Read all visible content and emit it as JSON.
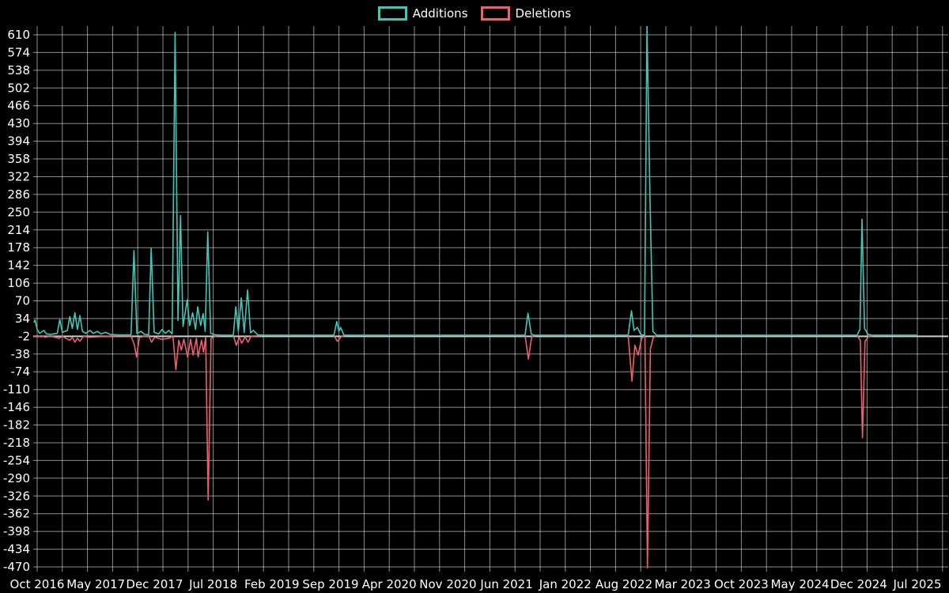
{
  "chart_data": {
    "type": "line",
    "title": "",
    "background": "#000000",
    "text_color": "#ffffff",
    "grid": true,
    "grid_color": "rgba(255,255,255,0.55)",
    "axis_line_value": -2,
    "axis_line_color": "#c9ced3",
    "legend_position": "top-center",
    "x_domain": [
      0,
      105
    ],
    "x_unit": "months since Oct 2016",
    "ylim": [
      -470,
      610
    ],
    "y_ticks": [
      610,
      574,
      538,
      502,
      466,
      430,
      394,
      358,
      322,
      286,
      250,
      214,
      178,
      142,
      106,
      70,
      34,
      -2,
      -38,
      -74,
      -110,
      -146,
      -182,
      -218,
      -254,
      -290,
      -326,
      -362,
      -398,
      -434,
      -470
    ],
    "x_ticks": [
      {
        "label": "Oct 2016",
        "m": 0
      },
      {
        "label": "May 2017",
        "m": 7
      },
      {
        "label": "Dec 2017",
        "m": 14
      },
      {
        "label": "Jul 2018",
        "m": 21
      },
      {
        "label": "Feb 2019",
        "m": 28
      },
      {
        "label": "Sep 2019",
        "m": 35
      },
      {
        "label": "Apr 2020",
        "m": 42
      },
      {
        "label": "Nov 2020",
        "m": 49
      },
      {
        "label": "Jun 2021",
        "m": 56
      },
      {
        "label": "Jan 2022",
        "m": 63
      },
      {
        "label": "Aug 2022",
        "m": 70
      },
      {
        "label": "Mar 2023",
        "m": 77
      },
      {
        "label": "Oct 2023",
        "m": 84
      },
      {
        "label": "May 2024",
        "m": 91
      },
      {
        "label": "Dec 2024",
        "m": 98
      },
      {
        "label": "Jul 2025",
        "m": 105
      }
    ],
    "series": [
      {
        "name": "Additions",
        "color": "#3ec8ba",
        "points": [
          [
            -0.4,
            26
          ],
          [
            -0.25,
            31
          ],
          [
            0,
            12
          ],
          [
            0.3,
            4
          ],
          [
            0.8,
            10
          ],
          [
            1.1,
            3
          ],
          [
            1.6,
            2
          ],
          [
            2.4,
            4
          ],
          [
            2.7,
            32
          ],
          [
            3.0,
            6
          ],
          [
            3.6,
            10
          ],
          [
            3.9,
            38
          ],
          [
            4.2,
            14
          ],
          [
            4.5,
            46
          ],
          [
            4.8,
            12
          ],
          [
            5.1,
            40
          ],
          [
            5.4,
            8
          ],
          [
            5.8,
            4
          ],
          [
            6.3,
            10
          ],
          [
            6.7,
            4
          ],
          [
            7.2,
            8
          ],
          [
            7.6,
            3
          ],
          [
            8.2,
            6
          ],
          [
            8.7,
            2
          ],
          [
            9.6,
            1
          ],
          [
            11.2,
            1
          ],
          [
            11.55,
            172
          ],
          [
            11.9,
            4
          ],
          [
            12.4,
            8
          ],
          [
            12.8,
            2
          ],
          [
            13.3,
            1
          ],
          [
            13.6,
            177
          ],
          [
            13.95,
            6
          ],
          [
            14.5,
            3
          ],
          [
            14.9,
            12
          ],
          [
            15.3,
            4
          ],
          [
            15.7,
            10
          ],
          [
            16.1,
            3
          ],
          [
            16.45,
            615
          ],
          [
            16.8,
            30
          ],
          [
            17.1,
            243
          ],
          [
            17.4,
            18
          ],
          [
            17.9,
            72
          ],
          [
            18.2,
            20
          ],
          [
            18.55,
            46
          ],
          [
            18.9,
            12
          ],
          [
            19.15,
            58
          ],
          [
            19.5,
            20
          ],
          [
            19.8,
            44
          ],
          [
            20.05,
            8
          ],
          [
            20.35,
            210
          ],
          [
            20.7,
            4
          ],
          [
            21.3,
            1
          ],
          [
            22.2,
            0
          ],
          [
            23.4,
            0
          ],
          [
            23.7,
            58
          ],
          [
            24.0,
            8
          ],
          [
            24.35,
            76
          ],
          [
            24.7,
            6
          ],
          [
            25.1,
            92
          ],
          [
            25.45,
            5
          ],
          [
            25.8,
            10
          ],
          [
            26.3,
            1
          ],
          [
            27.2,
            0
          ],
          [
            35.4,
            0
          ],
          [
            35.75,
            28
          ],
          [
            36.0,
            8
          ],
          [
            36.2,
            16
          ],
          [
            36.6,
            0
          ],
          [
            58.2,
            0
          ],
          [
            58.55,
            45
          ],
          [
            58.95,
            2
          ],
          [
            59.4,
            0
          ],
          [
            70.5,
            0
          ],
          [
            70.9,
            50
          ],
          [
            71.2,
            10
          ],
          [
            71.6,
            16
          ],
          [
            72.0,
            2
          ],
          [
            72.45,
            0
          ],
          [
            72.75,
            628
          ],
          [
            73.1,
            278
          ],
          [
            73.45,
            8
          ],
          [
            73.9,
            0
          ],
          [
            97.8,
            0
          ],
          [
            98.15,
            12
          ],
          [
            98.4,
            236
          ],
          [
            98.7,
            14
          ],
          [
            99.1,
            2
          ],
          [
            99.7,
            0
          ],
          [
            105,
            0
          ]
        ]
      },
      {
        "name": "Deletions",
        "color": "#f05f6d",
        "points": [
          [
            -0.4,
            -2
          ],
          [
            0,
            -3
          ],
          [
            0.5,
            -1
          ],
          [
            1,
            -4
          ],
          [
            1.5,
            -1
          ],
          [
            2.6,
            -6
          ],
          [
            3.0,
            -2
          ],
          [
            3.9,
            -10
          ],
          [
            4.2,
            -4
          ],
          [
            4.5,
            -14
          ],
          [
            4.8,
            -6
          ],
          [
            5.1,
            -12
          ],
          [
            5.5,
            -2
          ],
          [
            6.3,
            -4
          ],
          [
            7.2,
            -3
          ],
          [
            8.2,
            -2
          ],
          [
            9.6,
            -1
          ],
          [
            11.2,
            -1
          ],
          [
            11.6,
            -20
          ],
          [
            11.85,
            -44
          ],
          [
            12.2,
            -4
          ],
          [
            12.8,
            -2
          ],
          [
            13.3,
            -1
          ],
          [
            13.65,
            -14
          ],
          [
            14.0,
            -4
          ],
          [
            14.9,
            -8
          ],
          [
            15.7,
            -6
          ],
          [
            16.2,
            -2
          ],
          [
            16.55,
            -70
          ],
          [
            16.9,
            -10
          ],
          [
            17.2,
            -30
          ],
          [
            17.5,
            -8
          ],
          [
            17.95,
            -44
          ],
          [
            18.3,
            -8
          ],
          [
            18.6,
            -40
          ],
          [
            19.0,
            -6
          ],
          [
            19.2,
            -44
          ],
          [
            19.6,
            -10
          ],
          [
            19.85,
            -34
          ],
          [
            20.1,
            -4
          ],
          [
            20.4,
            -334
          ],
          [
            20.75,
            -6
          ],
          [
            21.4,
            -1
          ],
          [
            22.2,
            0
          ],
          [
            23.4,
            0
          ],
          [
            23.75,
            -20
          ],
          [
            24.1,
            -4
          ],
          [
            24.4,
            -16
          ],
          [
            24.8,
            -3
          ],
          [
            25.15,
            -14
          ],
          [
            25.5,
            -2
          ],
          [
            26.3,
            -1
          ],
          [
            27.2,
            0
          ],
          [
            35.4,
            0
          ],
          [
            35.8,
            -12
          ],
          [
            36.25,
            -3
          ],
          [
            36.7,
            0
          ],
          [
            58.2,
            0
          ],
          [
            58.6,
            -48
          ],
          [
            59.0,
            -2
          ],
          [
            59.5,
            0
          ],
          [
            70.5,
            0
          ],
          [
            70.95,
            -93
          ],
          [
            71.3,
            -20
          ],
          [
            71.7,
            -40
          ],
          [
            72.1,
            -6
          ],
          [
            72.5,
            -1
          ],
          [
            72.8,
            -472
          ],
          [
            73.15,
            -28
          ],
          [
            73.5,
            -4
          ],
          [
            74.0,
            0
          ],
          [
            97.8,
            0
          ],
          [
            98.2,
            -10
          ],
          [
            98.45,
            -208
          ],
          [
            98.75,
            -12
          ],
          [
            99.2,
            -2
          ],
          [
            99.8,
            0
          ],
          [
            105,
            0
          ]
        ]
      }
    ]
  }
}
